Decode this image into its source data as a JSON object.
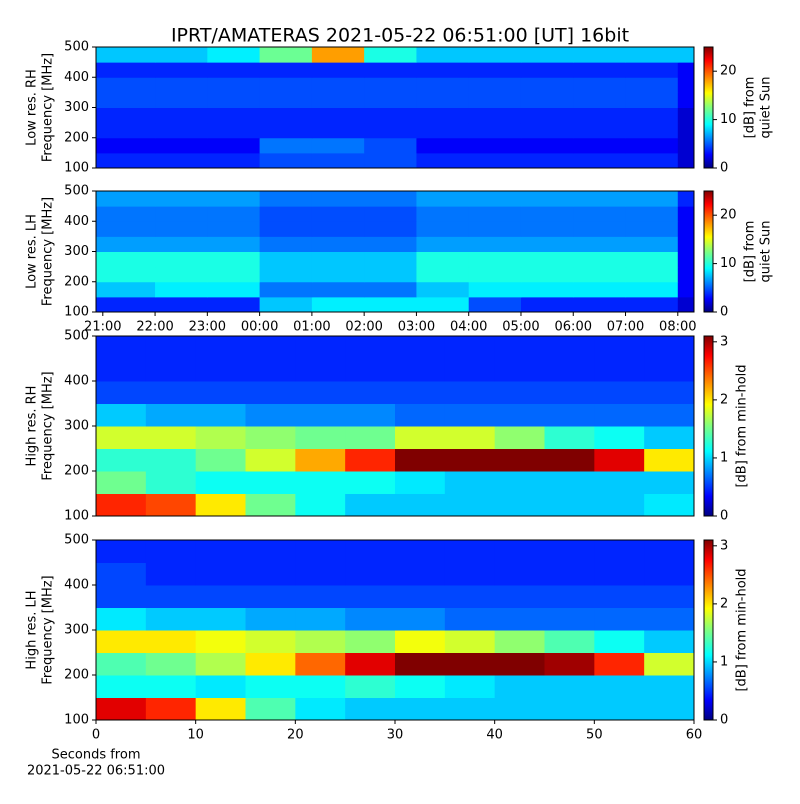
{
  "title": "IPRT/AMATERAS 2021-05-22 06:51:00 [UT]   16bit",
  "chart_data": [
    {
      "type": "heatmap",
      "ylabel": [
        "Low res. RH",
        "Frequency [MHz]"
      ],
      "cbar_label": [
        "[dB] from",
        "quiet Sun"
      ],
      "colormap": "jet",
      "xlim": [
        20.87,
        32.31
      ],
      "xbins": [
        20.87,
        22,
        23,
        24,
        25,
        26,
        27,
        28,
        29,
        30,
        31,
        32,
        32.31
      ],
      "ylim": [
        100,
        500
      ],
      "yticks": [
        100,
        200,
        300,
        400,
        500
      ],
      "ybins": [
        100,
        150,
        200,
        250,
        300,
        350,
        400,
        450,
        500
      ],
      "clim": [
        0,
        25
      ],
      "cticks": [
        0,
        10,
        20
      ],
      "z": [
        [
          4,
          4,
          4,
          5,
          5,
          5,
          4,
          4,
          4,
          4,
          4,
          2
        ],
        [
          3,
          3,
          3,
          6,
          6,
          5,
          3,
          3,
          3,
          3,
          3,
          2
        ],
        [
          4,
          4,
          4,
          4,
          4,
          4,
          4,
          4,
          4,
          4,
          4,
          2
        ],
        [
          4,
          4,
          4,
          4,
          4,
          4,
          4,
          4,
          4,
          4,
          4,
          2
        ],
        [
          5,
          5,
          5,
          5,
          5,
          5,
          5,
          5,
          5,
          5,
          5,
          3
        ],
        [
          5,
          5,
          5,
          5,
          5,
          5,
          5,
          5,
          5,
          5,
          5,
          3
        ],
        [
          4,
          4,
          4,
          4,
          4,
          4,
          4,
          4,
          4,
          4,
          4,
          3
        ],
        [
          8,
          8,
          9,
          12,
          18,
          10,
          8,
          8,
          8,
          8,
          8,
          8
        ]
      ]
    },
    {
      "type": "heatmap",
      "ylabel": [
        "Low res. LH",
        "Frequency [MHz]"
      ],
      "cbar_label": [
        "[dB] from",
        "quiet Sun"
      ],
      "colormap": "jet",
      "xlim": [
        20.87,
        32.31
      ],
      "xbins": [
        20.87,
        22,
        23,
        24,
        25,
        26,
        27,
        28,
        29,
        30,
        31,
        32,
        32.31
      ],
      "xticks": [
        {
          "value": 21,
          "label": "21:00"
        },
        {
          "value": 22,
          "label": "22:00"
        },
        {
          "value": 23,
          "label": "23:00"
        },
        {
          "value": 24,
          "label": "00:00"
        },
        {
          "value": 25,
          "label": "01:00"
        },
        {
          "value": 26,
          "label": "02:00"
        },
        {
          "value": 27,
          "label": "03:00"
        },
        {
          "value": 28,
          "label": "04:00"
        },
        {
          "value": 29,
          "label": "05:00"
        },
        {
          "value": 30,
          "label": "06:00"
        },
        {
          "value": 31,
          "label": "07:00"
        },
        {
          "value": 32,
          "label": "08:00"
        }
      ],
      "ylim": [
        100,
        500
      ],
      "yticks": [
        100,
        200,
        300,
        400,
        500
      ],
      "ybins": [
        100,
        150,
        200,
        250,
        300,
        350,
        400,
        450,
        500
      ],
      "clim": [
        0,
        25
      ],
      "cticks": [
        0,
        10,
        20
      ],
      "z": [
        [
          4,
          4,
          4,
          8,
          9,
          9,
          9,
          5,
          4,
          4,
          4,
          2
        ],
        [
          8,
          9,
          9,
          6,
          6,
          6,
          8,
          9,
          9,
          9,
          9,
          3
        ],
        [
          10,
          10,
          10,
          8,
          8,
          8,
          10,
          10,
          10,
          10,
          10,
          3
        ],
        [
          10,
          10,
          10,
          8,
          8,
          8,
          10,
          10,
          10,
          10,
          10,
          3
        ],
        [
          7,
          7,
          7,
          6,
          6,
          6,
          7,
          7,
          7,
          7,
          7,
          3
        ],
        [
          6,
          6,
          6,
          5,
          5,
          5,
          6,
          6,
          6,
          6,
          6,
          3
        ],
        [
          6,
          6,
          6,
          5,
          5,
          5,
          6,
          6,
          6,
          6,
          6,
          3
        ],
        [
          7,
          7,
          7,
          6,
          6,
          6,
          7,
          7,
          7,
          7,
          7,
          4
        ]
      ]
    },
    {
      "type": "heatmap",
      "ylabel": [
        "High res. RH",
        "Frequency [MHz]"
      ],
      "cbar_label": [
        "[dB] from min-hold"
      ],
      "colormap": "jet",
      "xlim": [
        0,
        60
      ],
      "xbins": [
        0,
        5,
        10,
        15,
        20,
        25,
        30,
        35,
        40,
        45,
        50,
        55,
        60
      ],
      "ylim": [
        100,
        500
      ],
      "yticks": [
        100,
        200,
        300,
        400,
        500
      ],
      "ybins": [
        100,
        150,
        200,
        250,
        300,
        350,
        400,
        450,
        500
      ],
      "clim": [
        0,
        3.1
      ],
      "cticks": [
        0,
        1,
        2,
        3
      ],
      "z": [
        [
          2.6,
          2.5,
          2,
          1.5,
          1.2,
          1,
          1,
          1,
          1,
          1,
          1,
          1.1
        ],
        [
          1.5,
          1.3,
          1.2,
          1.2,
          1.2,
          1.2,
          1.1,
          1,
          1,
          1,
          1,
          1
        ],
        [
          1.3,
          1.3,
          1.5,
          1.8,
          2.2,
          2.6,
          3.1,
          3.1,
          3.1,
          3.1,
          2.8,
          2
        ],
        [
          1.8,
          1.8,
          1.7,
          1.6,
          1.5,
          1.5,
          1.8,
          1.8,
          1.6,
          1.3,
          1.2,
          1
        ],
        [
          1,
          0.9,
          0.9,
          0.8,
          0.8,
          0.8,
          0.7,
          0.7,
          0.7,
          0.7,
          0.7,
          0.7
        ],
        [
          0.6,
          0.6,
          0.6,
          0.6,
          0.6,
          0.6,
          0.6,
          0.6,
          0.6,
          0.6,
          0.6,
          0.6
        ],
        [
          0.5,
          0.5,
          0.5,
          0.5,
          0.5,
          0.5,
          0.5,
          0.5,
          0.5,
          0.5,
          0.5,
          0.5
        ],
        [
          0.5,
          0.5,
          0.5,
          0.5,
          0.5,
          0.5,
          0.5,
          0.5,
          0.5,
          0.5,
          0.5,
          0.5
        ]
      ]
    },
    {
      "type": "heatmap",
      "ylabel": [
        "High res. LH",
        "Frequency [MHz]"
      ],
      "cbar_label": [
        "[dB] from min-hold"
      ],
      "colormap": "jet",
      "xlabel": [
        "Seconds from",
        "2021-05-22 06:51:00"
      ],
      "xlim": [
        0,
        60
      ],
      "xticks": [
        0,
        10,
        20,
        30,
        40,
        50,
        60
      ],
      "xbins": [
        0,
        5,
        10,
        15,
        20,
        25,
        30,
        35,
        40,
        45,
        50,
        55,
        60
      ],
      "ylim": [
        100,
        500
      ],
      "yticks": [
        100,
        200,
        300,
        400,
        500
      ],
      "ybins": [
        100,
        150,
        200,
        250,
        300,
        350,
        400,
        450,
        500
      ],
      "clim": [
        0,
        3.1
      ],
      "cticks": [
        0,
        1,
        2,
        3
      ],
      "z": [
        [
          2.8,
          2.6,
          2,
          1.4,
          1.1,
          1,
          1,
          1,
          1,
          1,
          1,
          1
        ],
        [
          1.2,
          1.2,
          1.1,
          1.2,
          1.2,
          1.3,
          1.2,
          1.1,
          1,
          1,
          1,
          1
        ],
        [
          1.4,
          1.5,
          1.7,
          2,
          2.4,
          2.8,
          3.1,
          3.1,
          3.1,
          3,
          2.6,
          1.8
        ],
        [
          2,
          2,
          1.9,
          1.8,
          1.7,
          1.6,
          1.9,
          1.8,
          1.6,
          1.4,
          1.2,
          1
        ],
        [
          1.1,
          1,
          1,
          0.9,
          0.9,
          0.8,
          0.8,
          0.7,
          0.7,
          0.7,
          0.7,
          0.7
        ],
        [
          0.6,
          0.6,
          0.6,
          0.6,
          0.6,
          0.6,
          0.6,
          0.6,
          0.6,
          0.6,
          0.6,
          0.6
        ],
        [
          0.6,
          0.5,
          0.5,
          0.5,
          0.5,
          0.5,
          0.5,
          0.5,
          0.5,
          0.5,
          0.5,
          0.5
        ],
        [
          0.5,
          0.5,
          0.5,
          0.5,
          0.5,
          0.5,
          0.5,
          0.5,
          0.5,
          0.5,
          0.5,
          0.5
        ]
      ]
    }
  ]
}
